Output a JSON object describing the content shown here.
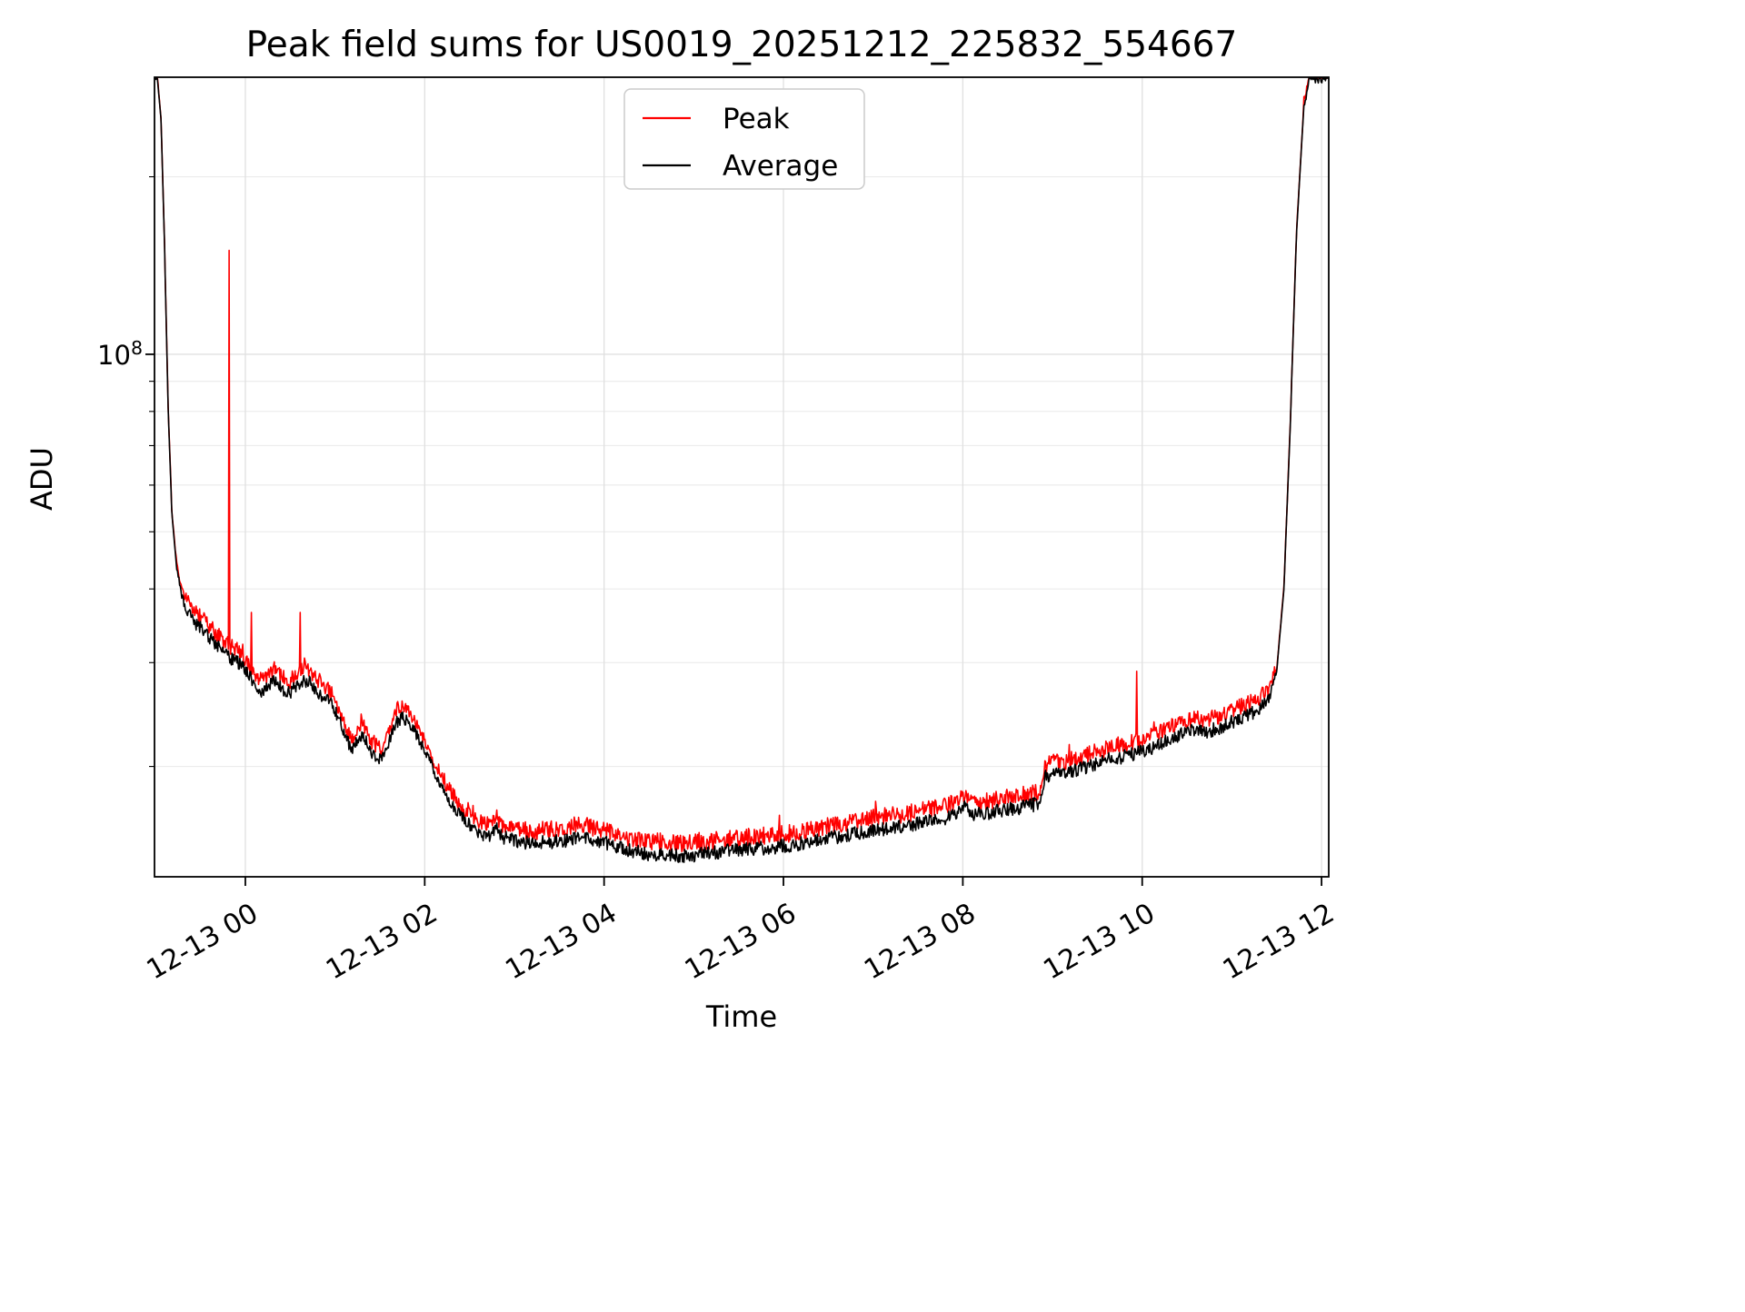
{
  "figure": {
    "title": "Peak field sums for US0019_20251212_225832_554667",
    "xlabel": "Time",
    "ylabel": "ADU",
    "y_tick": {
      "base": "10",
      "exponent": "8"
    }
  },
  "legend": {
    "position": "upper center",
    "entries": [
      {
        "label": "Peak",
        "color": "#ff0000"
      },
      {
        "label": "Average",
        "color": "#000000"
      }
    ]
  },
  "chart_data": {
    "type": "line",
    "title": "Peak field sums for US0019_20251212_225832_554667",
    "xlabel": "Time",
    "ylabel": "ADU",
    "yscale": "log",
    "grid": true,
    "legend_position": "upper center",
    "ylim": [
      13000000.0,
      295000000.0
    ],
    "xlim_hours": [
      -1.013,
      12.08
    ],
    "time_axis_note": "hours relative to tick 12-13 00",
    "x_ticks": [
      {
        "t": 0,
        "label": "12-13 00"
      },
      {
        "t": 2,
        "label": "12-13 02"
      },
      {
        "t": 4,
        "label": "12-13 04"
      },
      {
        "t": 6,
        "label": "12-13 06"
      },
      {
        "t": 8,
        "label": "12-13 08"
      },
      {
        "t": 10,
        "label": "12-13 10"
      },
      {
        "t": 12,
        "label": "12-13 12"
      }
    ],
    "y_major_ticks": [
      100000000.0
    ],
    "y_minor_ticks": [
      20000000.0,
      30000000.0,
      40000000.0,
      50000000.0,
      60000000.0,
      70000000.0,
      80000000.0,
      90000000.0,
      200000000.0
    ],
    "series": [
      {
        "name": "Peak",
        "color": "#ff0000",
        "derived_from": "Average",
        "offset_log10": 0.006,
        "noise_log10": 0.03,
        "spikes": [
          [
            -0.18,
            150000000.0
          ],
          [
            0.07,
            36500000.0
          ],
          [
            0.61,
            36500000.0
          ],
          [
            9.94,
            29000000.0
          ]
        ]
      },
      {
        "name": "Average",
        "color": "#000000",
        "noise_log10": 0.012,
        "points": [
          [
            -1.013,
            295000000.0
          ],
          [
            -0.98,
            293000000.0
          ],
          [
            -0.94,
            250000000.0
          ],
          [
            -0.9,
            150000000.0
          ],
          [
            -0.86,
            80000000.0
          ],
          [
            -0.82,
            54000000.0
          ],
          [
            -0.77,
            44000000.0
          ],
          [
            -0.71,
            39000000.0
          ],
          [
            -0.64,
            36500000.0
          ],
          [
            -0.56,
            35000000.0
          ],
          [
            -0.48,
            34200000.0
          ],
          [
            -0.4,
            33000000.0
          ],
          [
            -0.32,
            32200000.0
          ],
          [
            -0.24,
            31200000.0
          ],
          [
            -0.16,
            30500000.0
          ],
          [
            -0.08,
            30000000.0
          ],
          [
            0.0,
            29200000.0
          ],
          [
            0.08,
            28000000.0
          ],
          [
            0.16,
            26800000.0
          ],
          [
            0.24,
            27200000.0
          ],
          [
            0.32,
            28000000.0
          ],
          [
            0.4,
            27200000.0
          ],
          [
            0.48,
            26600000.0
          ],
          [
            0.56,
            27200000.0
          ],
          [
            0.64,
            28000000.0
          ],
          [
            0.72,
            27800000.0
          ],
          [
            0.8,
            26800000.0
          ],
          [
            0.88,
            26200000.0
          ],
          [
            0.96,
            25500000.0
          ],
          [
            1.05,
            24000000.0
          ],
          [
            1.14,
            22000000.0
          ],
          [
            1.2,
            21500000.0
          ],
          [
            1.3,
            22800000.0
          ],
          [
            1.42,
            21000000.0
          ],
          [
            1.52,
            20500000.0
          ],
          [
            1.6,
            22000000.0
          ],
          [
            1.68,
            23800000.0
          ],
          [
            1.76,
            24200000.0
          ],
          [
            1.85,
            23500000.0
          ],
          [
            1.95,
            22000000.0
          ],
          [
            2.05,
            20500000.0
          ],
          [
            2.15,
            19000000.0
          ],
          [
            2.28,
            17500000.0
          ],
          [
            2.4,
            16500000.0
          ],
          [
            2.52,
            15800000.0
          ],
          [
            2.62,
            15400000.0
          ],
          [
            2.72,
            15200000.0
          ],
          [
            2.8,
            15800000.0
          ],
          [
            2.86,
            15200000.0
          ],
          [
            3.0,
            15000000.0
          ],
          [
            3.2,
            14800000.0
          ],
          [
            3.4,
            14900000.0
          ],
          [
            3.6,
            15000000.0
          ],
          [
            3.75,
            15200000.0
          ],
          [
            3.9,
            15000000.0
          ],
          [
            4.1,
            14700000.0
          ],
          [
            4.3,
            14400000.0
          ],
          [
            4.5,
            14200000.0
          ],
          [
            4.7,
            14200000.0
          ],
          [
            4.9,
            14100000.0
          ],
          [
            5.1,
            14200000.0
          ],
          [
            5.4,
            14400000.0
          ],
          [
            5.7,
            14500000.0
          ],
          [
            5.9,
            14600000.0
          ],
          [
            6.1,
            14700000.0
          ],
          [
            6.4,
            15000000.0
          ],
          [
            6.7,
            15300000.0
          ],
          [
            7.0,
            15600000.0
          ],
          [
            7.3,
            15800000.0
          ],
          [
            7.6,
            16100000.0
          ],
          [
            7.8,
            16300000.0
          ],
          [
            7.95,
            16800000.0
          ],
          [
            8.02,
            17200000.0
          ],
          [
            8.1,
            16600000.0
          ],
          [
            8.3,
            16700000.0
          ],
          [
            8.5,
            16900000.0
          ],
          [
            8.7,
            17100000.0
          ],
          [
            8.85,
            17300000.0
          ],
          [
            8.92,
            19200000.0
          ],
          [
            9.0,
            19500000.0
          ],
          [
            9.1,
            19300000.0
          ],
          [
            9.25,
            19700000.0
          ],
          [
            9.4,
            20000000.0
          ],
          [
            9.6,
            20500000.0
          ],
          [
            9.8,
            20800000.0
          ],
          [
            10.0,
            21200000.0
          ],
          [
            10.2,
            21800000.0
          ],
          [
            10.4,
            22600000.0
          ],
          [
            10.55,
            23000000.0
          ],
          [
            10.7,
            22900000.0
          ],
          [
            10.85,
            23200000.0
          ],
          [
            11.0,
            23800000.0
          ],
          [
            11.15,
            24300000.0
          ],
          [
            11.3,
            25000000.0
          ],
          [
            11.42,
            26200000.0
          ],
          [
            11.5,
            29000000.0
          ],
          [
            11.58,
            40000000.0
          ],
          [
            11.65,
            75000000.0
          ],
          [
            11.72,
            160000000.0
          ],
          [
            11.8,
            260000000.0
          ],
          [
            11.87,
            295000000.0
          ],
          [
            12.08,
            295000000.0
          ]
        ]
      }
    ]
  }
}
